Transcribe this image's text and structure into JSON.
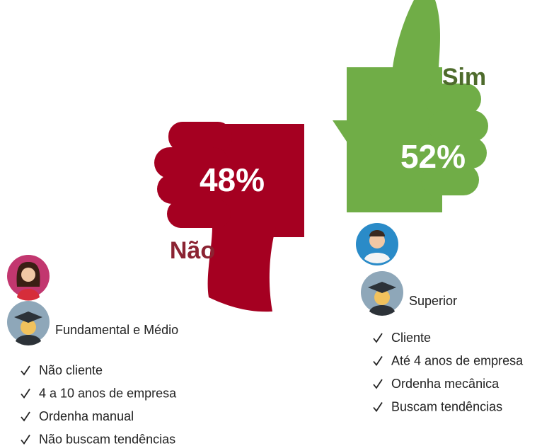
{
  "no": {
    "label": "Não",
    "percent": "48%",
    "education": "Fundamental e Médio",
    "items": [
      "Não cliente",
      "4 a 10 anos de empresa",
      "Ordenha manual",
      "Não buscam tendências"
    ]
  },
  "yes": {
    "label": "Sim",
    "percent": "52%",
    "education": "Superior",
    "items": [
      "Cliente",
      "Até 4 anos de empresa",
      "Ordenha mecânica",
      "Buscam tendências"
    ]
  }
}
